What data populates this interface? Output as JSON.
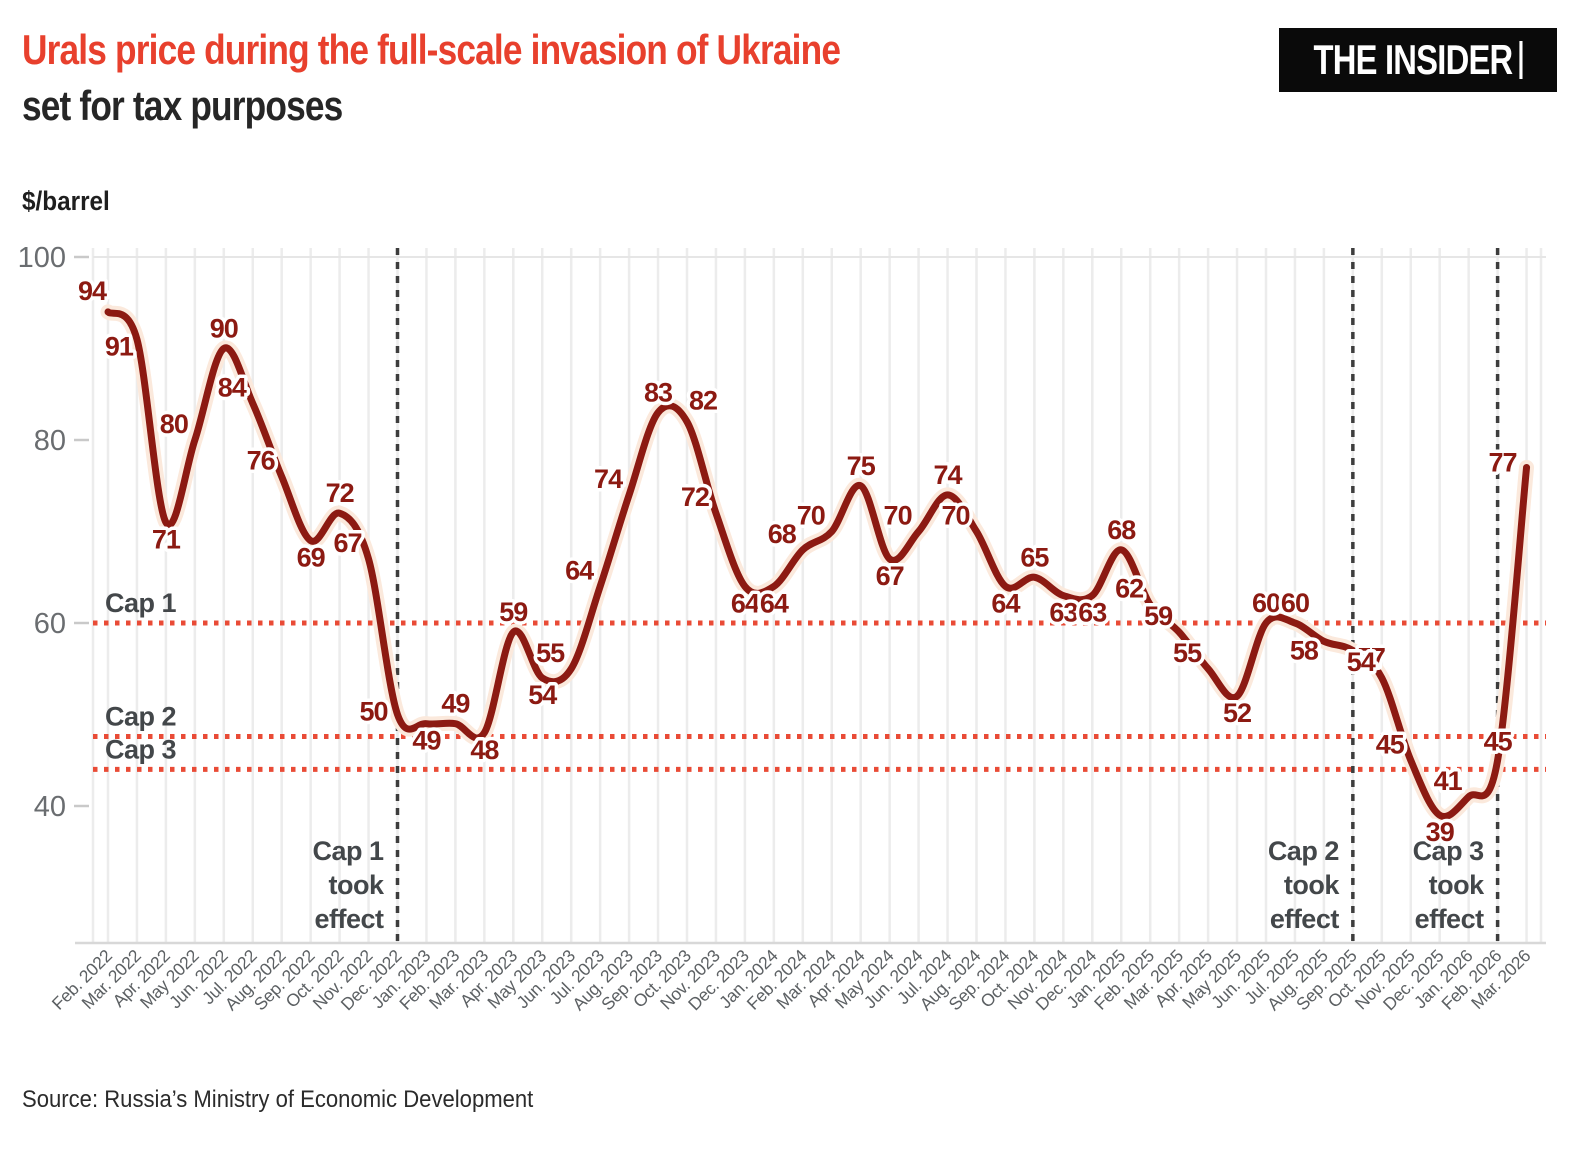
{
  "header": {
    "title": "Urals price during the full-scale invasion of Ukraine",
    "subtitle": "set for tax purposes",
    "brand": "THE INSIDER"
  },
  "chart_data": {
    "type": "line",
    "title": "Urals price during the full-scale invasion of Ukraine set for tax purposes",
    "ylabel": "$/barrel",
    "yticks": [
      100,
      80,
      60,
      40
    ],
    "ylim": [
      36,
      102
    ],
    "grid": "vertical-monthly",
    "legend_position": "none",
    "line_color": "#8c1a12",
    "line_halo_color": "#fbe9dc",
    "cap_line_color": "#e94b36",
    "event_line_color": "#3d3d3d",
    "annotation_color": "#43474a",
    "x": [
      "Feb. 2022",
      "Mar. 2022",
      "Apr. 2022",
      "May 2022",
      "Jun. 2022",
      "Jul. 2022",
      "Aug. 2022",
      "Sep. 2022",
      "Oct. 2022",
      "Nov. 2022",
      "Dec. 2022",
      "Jan. 2023",
      "Feb. 2023",
      "Mar. 2023",
      "Apr. 2023",
      "May 2023",
      "Jun. 2023",
      "Jul. 2023",
      "Aug. 2023",
      "Sep. 2023",
      "Oct. 2023",
      "Nov. 2023",
      "Dec. 2023",
      "Jan. 2024",
      "Feb. 2024",
      "Mar. 2024",
      "Apr. 2024",
      "May 2024",
      "Jun. 2024",
      "Jul. 2024",
      "Aug. 2024",
      "Sep. 2024",
      "Oct. 2024",
      "Nov. 2024",
      "Dec. 2024",
      "Jan. 2025",
      "Feb. 2025",
      "Mar. 2025",
      "Apr. 2025",
      "May 2025",
      "Jun. 2025",
      "Jul. 2025",
      "Aug. 2025",
      "Sep. 2025",
      "Oct. 2025",
      "Nov. 2025",
      "Dec. 2025",
      "Jan. 2026",
      "Feb. 2026",
      "Mar. 2026"
    ],
    "values": [
      94,
      91,
      71,
      80,
      90,
      84,
      76,
      69,
      72,
      67,
      50,
      49,
      49,
      48,
      59,
      54,
      55,
      64,
      74,
      83,
      82,
      72,
      64,
      64,
      68,
      70,
      75,
      67,
      70,
      74,
      70,
      64,
      65,
      63,
      63,
      68,
      62,
      59,
      55,
      52,
      60,
      60,
      58,
      57,
      54,
      45,
      39,
      41,
      45,
      77
    ],
    "cap_lines": [
      {
        "label": "Cap 1",
        "value": 60
      },
      {
        "label": "Cap 2",
        "value": 47.6
      },
      {
        "label": "Cap 3",
        "value": 44
      }
    ],
    "event_lines": [
      {
        "label_lines": [
          "Cap 1",
          "took",
          "effect"
        ],
        "month": "Dec. 2022"
      },
      {
        "label_lines": [
          "Cap 2",
          "took",
          "effect"
        ],
        "month": "Sep. 2025"
      },
      {
        "label_lines": [
          "Cap 3",
          "took",
          "effect"
        ],
        "month": "Feb. 2026"
      }
    ]
  },
  "footer": {
    "source": "Source: Russia’s Ministry of Economic Development"
  }
}
